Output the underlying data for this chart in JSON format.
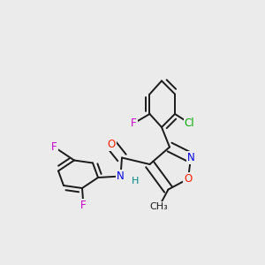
{
  "bg_color": "#ebebeb",
  "bond_color": "#1a1a1a",
  "bond_width": 1.4,
  "figsize": [
    3.0,
    3.0
  ],
  "dpi": 100,
  "colors": {
    "O": "#ff2000",
    "N": "#0000ee",
    "H": "#008888",
    "F": "#cc00cc",
    "Cl": "#00aa00",
    "C": "#1a1a1a"
  }
}
